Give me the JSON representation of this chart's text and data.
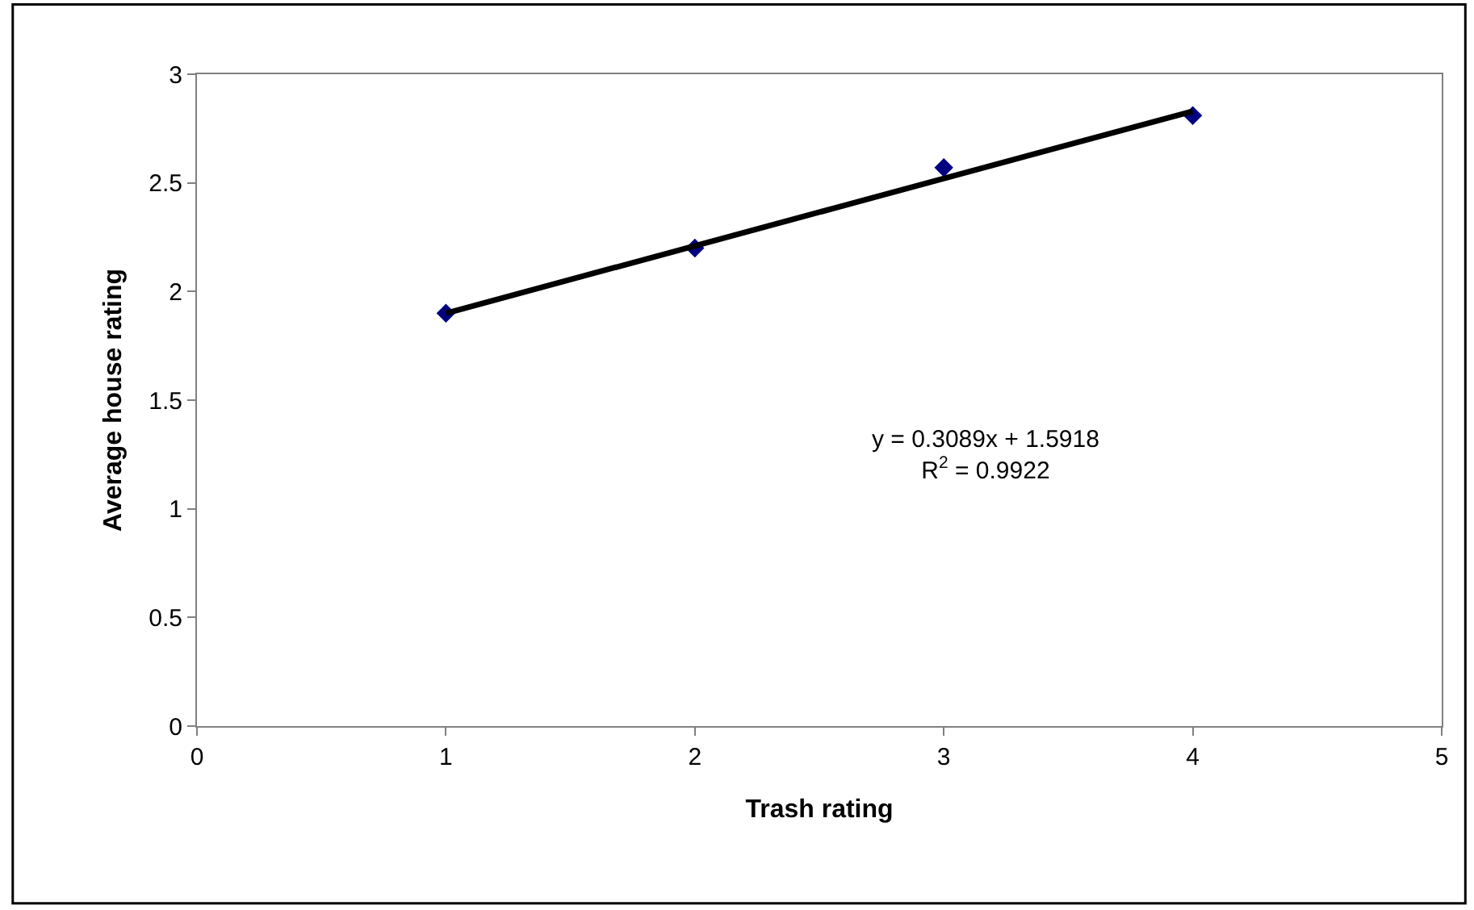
{
  "chart_data": {
    "type": "scatter",
    "xlabel": "Trash rating",
    "ylabel": "Average house rating",
    "x": [
      1,
      2,
      3,
      4
    ],
    "series": [
      {
        "color": "#000080",
        "marker": "diamond",
        "values": [
          1.9,
          2.2,
          2.57,
          2.81
        ]
      },
      {
        "type": "line",
        "color": "#000000",
        "marker": "none",
        "line_style": "solid",
        "x": [
          1,
          4
        ],
        "values": [
          1.9,
          2.83
        ]
      }
    ],
    "annotations": [
      "y = 0.3089x + 1.5918\nR$^{2}$ = 0.9922"
    ],
    "xlim": [
      0,
      5
    ],
    "xticks": [
      0,
      1,
      2,
      3,
      4,
      5
    ],
    "ylim": [
      0,
      3
    ],
    "yticks": [
      0,
      0.5,
      1,
      1.5,
      2,
      2.5,
      3
    ],
    "grid": false
  }
}
